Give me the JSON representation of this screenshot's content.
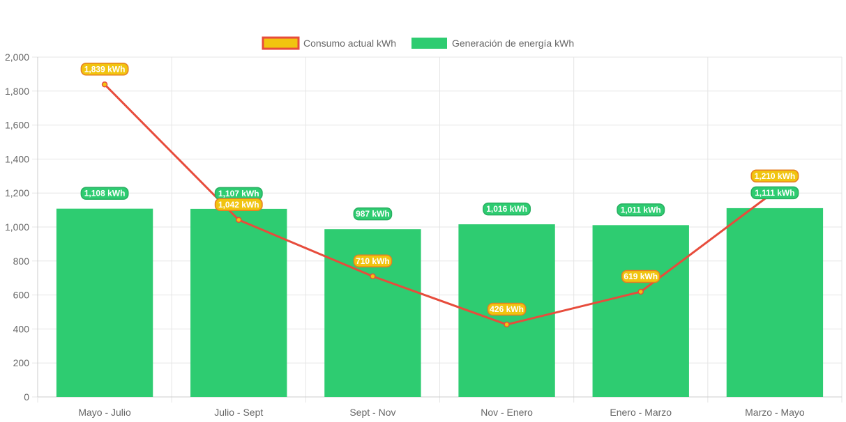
{
  "chart_data": {
    "type": "bar",
    "categories": [
      "Mayo - Julio",
      "Julio - Sept",
      "Sept - Nov",
      "Nov - Enero",
      "Enero - Marzo",
      "Marzo - Mayo"
    ],
    "series": [
      {
        "name": "Consumo actual kWh",
        "type": "line",
        "values": [
          1839,
          1042,
          710,
          426,
          619,
          1210
        ],
        "labels": [
          "1,839 kWh",
          "1,042 kWh",
          "710 kWh",
          "426 kWh",
          "619 kWh",
          "1,210 kWh"
        ],
        "color": "#e74c3c",
        "fill_color": "#f1c40f"
      },
      {
        "name": "Generación de energía kWh",
        "type": "bar",
        "values": [
          1108,
          1107,
          987,
          1016,
          1011,
          1111
        ],
        "labels": [
          "1,108 kWh",
          "1,107 kWh",
          "987 kWh",
          "1,016 kWh",
          "1,011 kWh",
          "1,111 kWh"
        ],
        "color": "#2ecc71"
      }
    ],
    "ylim": [
      0,
      2000
    ],
    "yticks": [
      "0",
      "200",
      "400",
      "600",
      "800",
      "1,000",
      "1,200",
      "1,400",
      "1,600",
      "1,800",
      "2,000"
    ],
    "ytick_values": [
      0,
      200,
      400,
      600,
      800,
      1000,
      1200,
      1400,
      1600,
      1800,
      2000
    ],
    "grid": true,
    "legend_position": "top-center"
  }
}
